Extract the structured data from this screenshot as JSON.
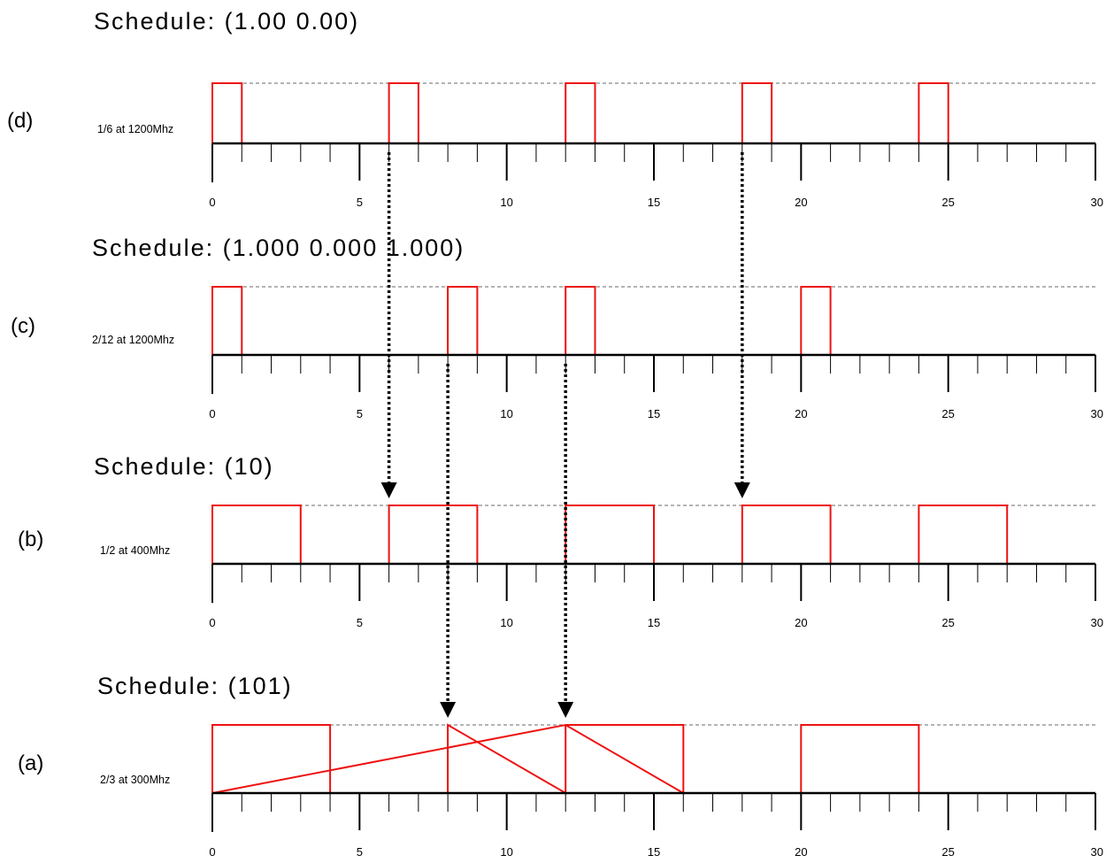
{
  "colors": {
    "signal": "#ee1111",
    "reference": "#888888",
    "axis": "#000000",
    "arrow": "#000000"
  },
  "axis": {
    "min": 0,
    "max": 30,
    "major_ticks": [
      0,
      5,
      10,
      15,
      20,
      25,
      30
    ]
  },
  "panels": [
    {
      "id": "d",
      "label": "(d)",
      "title": "Schedule: (1.00 0.00)",
      "rate": "1/6 at 1200Mhz",
      "signal": [
        [
          0,
          1
        ],
        [
          0,
          0
        ],
        [
          1,
          0
        ],
        [
          1,
          1
        ],
        [
          0,
          1
        ],
        [
          6,
          1
        ],
        [
          6,
          0
        ],
        [
          7,
          0
        ],
        [
          7,
          1
        ],
        [
          0,
          1
        ],
        [
          12,
          1
        ],
        [
          12,
          0
        ],
        [
          13,
          0
        ],
        [
          13,
          1
        ],
        [
          0,
          1
        ],
        [
          18,
          1
        ],
        [
          18,
          0
        ],
        [
          19,
          0
        ],
        [
          19,
          1
        ],
        [
          0,
          1
        ],
        [
          24,
          1
        ],
        [
          24,
          0
        ],
        [
          25,
          0
        ],
        [
          25,
          1
        ],
        [
          0,
          1
        ]
      ]
    },
    {
      "id": "c",
      "label": "(c)",
      "title": "Schedule: (1.000 0.000 1.000)",
      "rate": "2/12 at 1200Mhz",
      "signal": [
        [
          0,
          1
        ],
        [
          0,
          0
        ],
        [
          1,
          0
        ],
        [
          1,
          1
        ],
        [
          0,
          1
        ],
        [
          8,
          1
        ],
        [
          8,
          0
        ],
        [
          9,
          0
        ],
        [
          9,
          1
        ],
        [
          0,
          1
        ],
        [
          12,
          1
        ],
        [
          12,
          0
        ],
        [
          13,
          0
        ],
        [
          13,
          1
        ],
        [
          0,
          1
        ],
        [
          20,
          1
        ],
        [
          20,
          0
        ],
        [
          21,
          0
        ],
        [
          21,
          1
        ],
        [
          0,
          1
        ]
      ]
    },
    {
      "id": "b",
      "label": "(b)",
      "title": "Schedule: (10)",
      "rate": "1/2 at 400Mhz",
      "signal": [
        [
          0,
          1
        ],
        [
          0,
          0
        ],
        [
          3,
          0
        ],
        [
          3,
          1
        ],
        [
          0,
          1
        ],
        [
          6,
          1
        ],
        [
          6,
          0
        ],
        [
          9,
          0
        ],
        [
          9,
          1
        ],
        [
          0,
          1
        ],
        [
          12,
          1
        ],
        [
          12,
          0
        ],
        [
          15,
          0
        ],
        [
          15,
          1
        ],
        [
          0,
          1
        ],
        [
          18,
          1
        ],
        [
          18,
          0
        ],
        [
          21,
          0
        ],
        [
          21,
          1
        ],
        [
          0,
          1
        ],
        [
          24,
          1
        ],
        [
          24,
          0
        ],
        [
          27,
          0
        ],
        [
          27,
          1
        ],
        [
          0,
          1
        ]
      ]
    },
    {
      "id": "a",
      "label": "(a)",
      "title": "Schedule: (101)",
      "rate": "2/3 at 300Mhz",
      "signal": [
        [
          0,
          1
        ],
        [
          0,
          0
        ],
        [
          4,
          0
        ],
        [
          4,
          1
        ],
        [
          0,
          1
        ],
        [
          8,
          1
        ],
        [
          8,
          0
        ],
        [
          12,
          1
        ],
        [
          12,
          0
        ],
        [
          16,
          0
        ],
        [
          16,
          1
        ],
        [
          12,
          0
        ],
        [
          0,
          1
        ],
        [
          20,
          1
        ],
        [
          20,
          0
        ],
        [
          24,
          0
        ],
        [
          24,
          1
        ],
        [
          0,
          1
        ]
      ]
    }
  ],
  "arrows": [
    {
      "x": 6,
      "from": "d",
      "to": "b"
    },
    {
      "x": 18,
      "from": "d",
      "to": "b"
    },
    {
      "x": 8,
      "from": "c",
      "to": "a"
    },
    {
      "x": 12,
      "from": "c",
      "to": "a"
    }
  ]
}
